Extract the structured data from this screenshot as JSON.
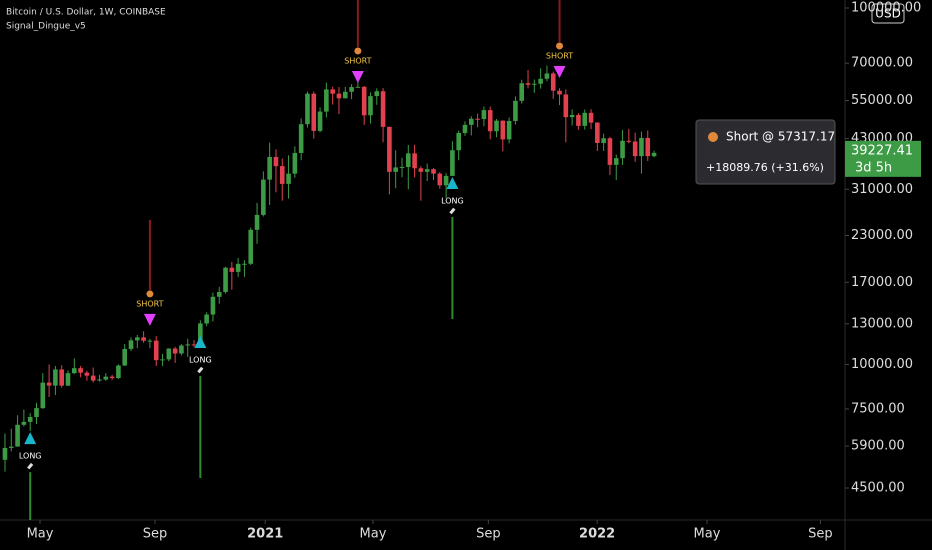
{
  "header": {
    "symbol": "Bitcoin / U.S. Dollar, 1W, COINBASE",
    "indicator": "Signal_Dingue_v5",
    "currency": "USD"
  },
  "chart_data": {
    "type": "candlestick",
    "log_scale": true,
    "up_color": "#3d9b46",
    "down_color": "#e2424f",
    "xlim": [
      -0.79,
      133.3
    ],
    "ylim": [
      3660,
      105300
    ],
    "xticks": [
      {
        "value": 5.56,
        "label": "May"
      },
      {
        "value": 23.8,
        "label": "Sep"
      },
      {
        "value": 41.3,
        "label": "2021"
      },
      {
        "value": 58.4,
        "label": "May"
      },
      {
        "value": 76.7,
        "label": "Sep"
      },
      {
        "value": 93.97,
        "label": "2022"
      },
      {
        "value": 111.4,
        "label": "May"
      },
      {
        "value": 129.4,
        "label": "Sep"
      }
    ],
    "yticks": [
      {
        "value": 100000,
        "label": "100000.00"
      },
      {
        "value": 70000,
        "label": "70000.00"
      },
      {
        "value": 55000,
        "label": "55000.00"
      },
      {
        "value": 43000,
        "label": "43000.00"
      },
      {
        "value": 31000,
        "label": "31000.00"
      },
      {
        "value": 23000,
        "label": "23000.00"
      },
      {
        "value": 17000,
        "label": "17000.00"
      },
      {
        "value": 13000,
        "label": "13000.00"
      },
      {
        "value": 10000,
        "label": "10000.00"
      },
      {
        "value": 7500,
        "label": "7500.00"
      },
      {
        "value": 5900,
        "label": "5900.00"
      },
      {
        "value": 4500,
        "label": "4500.00"
      }
    ],
    "open": [
      5400,
      5830,
      5880,
      6770,
      6900,
      7120,
      7540,
      8890,
      8720,
      9680,
      8720,
      9450,
      9760,
      9480,
      9300,
      9010,
      9070,
      9240,
      9160,
      9930,
      11050,
      11680,
      11910,
      11650,
      11660,
      10280,
      10330,
      11080,
      10730,
      11300,
      11380,
      11370,
      13030,
      13800,
      15480,
      15960,
      18680,
      18180,
      19150,
      19160,
      23860,
      26270,
      33000,
      38200,
      36000,
      32100,
      34300,
      39200,
      47200,
      57500,
      45200,
      51200,
      59100,
      57500,
      55800,
      58200,
      60000,
      60100,
      50000,
      56600,
      58400,
      46400,
      34700,
      35700,
      35800,
      39100,
      35500,
      34700,
      35300,
      34300,
      31800,
      33800,
      39900,
      44600,
      47000,
      48900,
      48800,
      51700,
      45100,
      48300,
      42800,
      48200,
      54900,
      61500,
      60900,
      61300,
      63300,
      65500,
      58600,
      57200,
      49400,
      50100,
      46700,
      50800,
      47700,
      41800,
      43100,
      36300,
      37900,
      42400,
      42200,
      38400,
      43200,
      38400
    ],
    "high": [
      6400,
      6600,
      7200,
      7470,
      7300,
      7800,
      9450,
      10000,
      9900,
      9950,
      9620,
      10400,
      9900,
      9600,
      9800,
      9350,
      9450,
      9350,
      10000,
      11400,
      11900,
      12100,
      12400,
      11800,
      12000,
      10700,
      11100,
      11200,
      11400,
      11800,
      11700,
      13300,
      14000,
      15900,
      16500,
      18800,
      19400,
      19900,
      19600,
      24200,
      28400,
      34800,
      41900,
      40100,
      37800,
      38600,
      40900,
      49000,
      58300,
      58300,
      52600,
      61800,
      60100,
      60000,
      60100,
      61100,
      64900,
      60400,
      58000,
      59500,
      59600,
      46500,
      39900,
      38000,
      41300,
      41300,
      36000,
      36600,
      35600,
      34600,
      34400,
      42300,
      45300,
      48100,
      49700,
      50500,
      52900,
      52900,
      48800,
      48400,
      49300,
      56500,
      62900,
      67000,
      63000,
      67700,
      69000,
      66300,
      59500,
      59100,
      51900,
      50700,
      51900,
      52000,
      47800,
      44400,
      43500,
      38800,
      45500,
      45800,
      44700,
      45000,
      45300,
      39800
    ],
    "low": [
      5000,
      5700,
      5900,
      6700,
      6500,
      6800,
      7500,
      8100,
      8200,
      8600,
      8700,
      9400,
      9200,
      9000,
      8900,
      8950,
      9000,
      9050,
      9100,
      9900,
      10900,
      11100,
      11500,
      11100,
      9900,
      9900,
      10200,
      10100,
      10600,
      10500,
      11200,
      11200,
      12800,
      13200,
      14800,
      15800,
      16200,
      17600,
      17600,
      19000,
      21800,
      26000,
      28000,
      30400,
      28800,
      29200,
      33400,
      37400,
      46200,
      43000,
      44800,
      49300,
      53600,
      50400,
      55700,
      55500,
      59800,
      47000,
      47400,
      53500,
      42000,
      30000,
      31200,
      33500,
      31000,
      33500,
      28800,
      32700,
      32900,
      31100,
      29300,
      33800,
      37400,
      43800,
      43900,
      46300,
      46600,
      42800,
      43400,
      39600,
      41700,
      47100,
      53900,
      59500,
      57800,
      59400,
      62300,
      55600,
      53400,
      42000,
      46800,
      45500,
      45600,
      45700,
      39700,
      39700,
      34000,
      32900,
      36300,
      41700,
      37000,
      34300,
      37200,
      38100
    ],
    "close": [
      5830,
      5880,
      6770,
      6900,
      7120,
      7540,
      8890,
      8720,
      9680,
      8720,
      9450,
      9760,
      9480,
      9300,
      9010,
      9070,
      9240,
      9160,
      9930,
      11050,
      11680,
      11910,
      11650,
      11660,
      10280,
      10330,
      11080,
      10730,
      11300,
      11380,
      11370,
      13030,
      13800,
      15480,
      15960,
      18680,
      18180,
      19150,
      19160,
      23860,
      26270,
      33000,
      38200,
      36000,
      32100,
      34300,
      39200,
      47200,
      57500,
      45200,
      51200,
      59100,
      57500,
      55800,
      58200,
      60000,
      60100,
      50000,
      56600,
      58400,
      46400,
      34700,
      35700,
      35800,
      39100,
      35500,
      34700,
      35300,
      34300,
      31800,
      33800,
      39900,
      44600,
      47000,
      48900,
      48800,
      51700,
      45100,
      48300,
      42800,
      48200,
      54900,
      61500,
      60900,
      61300,
      63300,
      65500,
      58600,
      57200,
      49400,
      50100,
      46700,
      50800,
      47700,
      41800,
      43100,
      36300,
      37900,
      42400,
      42200,
      38400,
      43200,
      38400,
      39227.41
    ],
    "signals": [
      {
        "label": "LONG",
        "x": 4,
        "price": 6210
      },
      {
        "label": "SHORT",
        "x": 23,
        "price": 13330
      },
      {
        "label": "LONG",
        "x": 31,
        "price": 11560
      },
      {
        "label": "SHORT",
        "x": 56,
        "price": 64050
      },
      {
        "label": "LONG",
        "x": 71,
        "price": 32290
      },
      {
        "label": "SHORT",
        "x": 88,
        "price": 66150
      }
    ],
    "long_color": "#19b6c9",
    "short_color": "#e040fb",
    "tooltip": {
      "title": "Short @ 57317.17",
      "pnl": "+18089.76 (+31.6%)"
    },
    "last_price": {
      "value": 39227.41,
      "label": "39227.41",
      "countdown": "3d 5h"
    }
  }
}
